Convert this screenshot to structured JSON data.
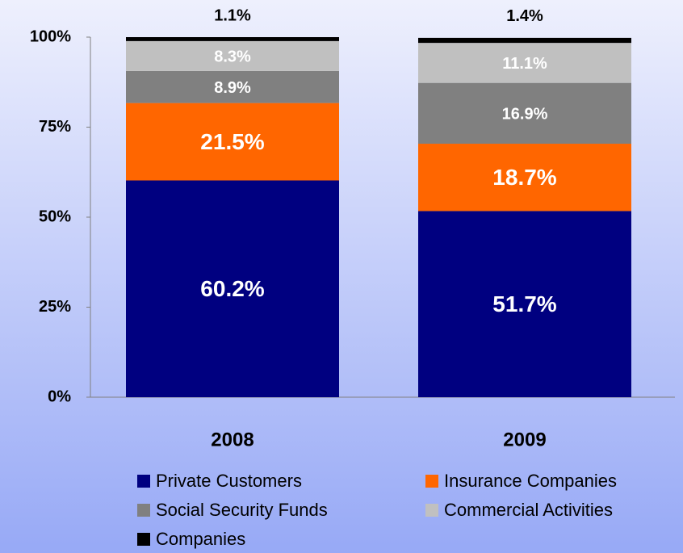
{
  "chart_data": {
    "type": "stacked_bar",
    "categories": [
      "2008",
      "2009"
    ],
    "series": [
      {
        "name": "Private Customers",
        "color": "#000080",
        "values": [
          60.2,
          51.7
        ],
        "value_labels": [
          "60.2%",
          "51.7%"
        ]
      },
      {
        "name": "Insurance Companies",
        "color": "#ff6600",
        "values": [
          21.5,
          18.7
        ],
        "value_labels": [
          "21.5%",
          "18.7%"
        ]
      },
      {
        "name": "Social Security Funds",
        "color": "#808080",
        "values": [
          8.9,
          16.9
        ],
        "value_labels": [
          "8.9%",
          "16.9%"
        ]
      },
      {
        "name": "Commercial Activities",
        "color": "#c0c0c0",
        "values": [
          8.3,
          11.1
        ],
        "value_labels": [
          "8.3%",
          "11.1%"
        ]
      },
      {
        "name": "Companies",
        "color": "#000000",
        "values": [
          1.1,
          1.4
        ],
        "value_labels": [
          "1.1%",
          "1.4%"
        ]
      }
    ],
    "ylim": [
      0,
      100
    ],
    "yticks": [
      {
        "value": 0,
        "label": "0%"
      },
      {
        "value": 25,
        "label": "25%"
      },
      {
        "value": 50,
        "label": "50%"
      },
      {
        "value": 75,
        "label": "75%"
      },
      {
        "value": 100,
        "label": "100%"
      }
    ],
    "grid": false,
    "legend": "bottom"
  }
}
